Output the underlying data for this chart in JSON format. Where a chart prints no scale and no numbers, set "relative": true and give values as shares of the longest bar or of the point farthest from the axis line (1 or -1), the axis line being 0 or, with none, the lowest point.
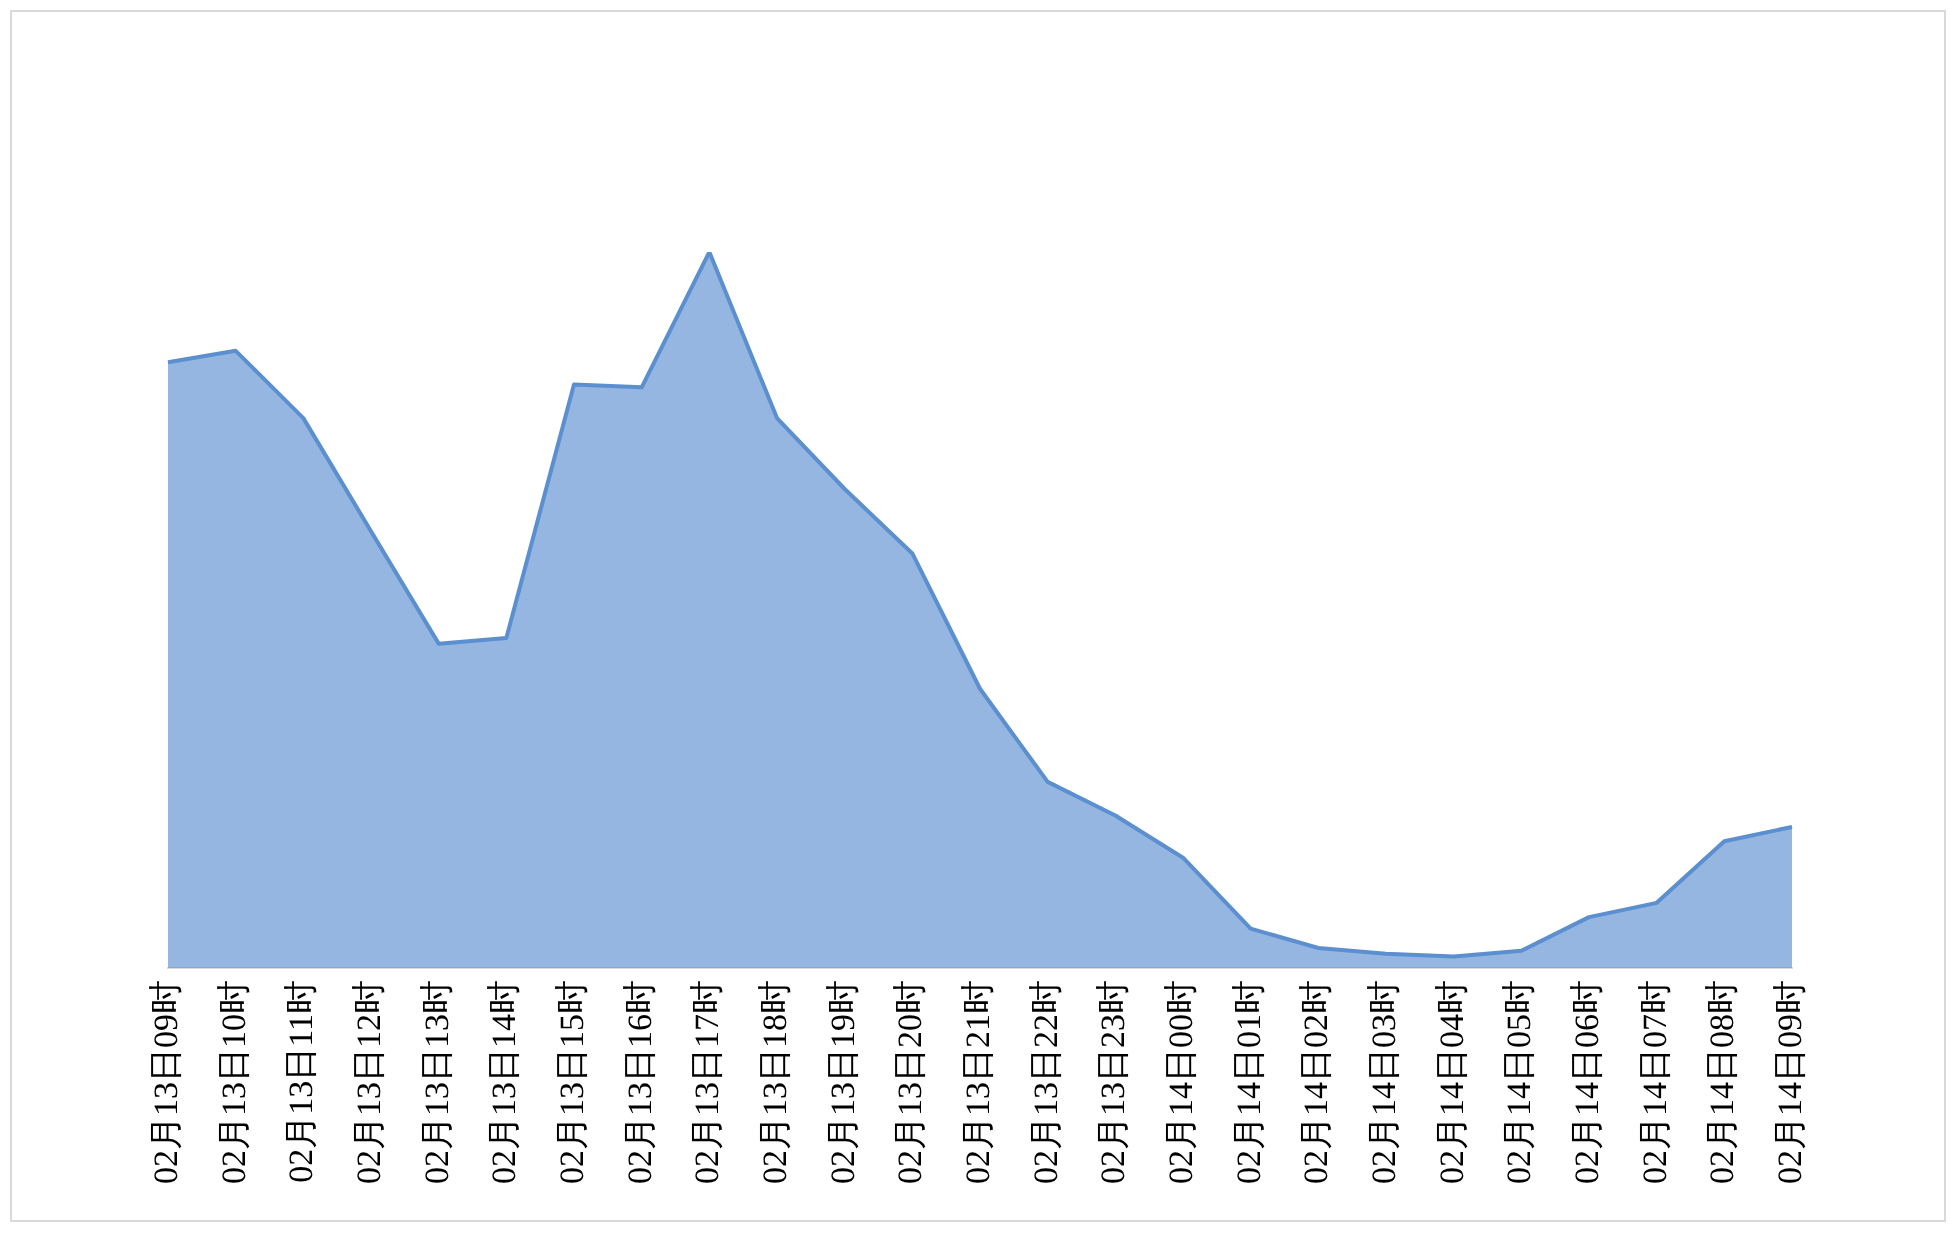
{
  "chart_data": {
    "type": "area",
    "relative": true,
    "grid": false,
    "legend": false,
    "categories": [
      "02月13日09时",
      "02月13日10时",
      "02月13日11时",
      "02月13日12时",
      "02月13日13时",
      "02月13日14时",
      "02月13日15时",
      "02月13日16时",
      "02月13日17时",
      "02月13日18时",
      "02月13日19时",
      "02月13日20时",
      "02月13日21时",
      "02月13日22时",
      "02月13日23时",
      "02月14日00时",
      "02月14日01时",
      "02月14日02时",
      "02月14日03时",
      "02月14日04时",
      "02月14日05时",
      "02月14日06时",
      "02月14日07时",
      "02月14日08时",
      "02月14日09时"
    ],
    "series": [
      {
        "color": "#5b8fd0",
        "values": [
          0.846,
          0.862,
          0.768,
          0.61,
          0.453,
          0.461,
          0.815,
          0.811,
          1,
          0.768,
          0.669,
          0.579,
          0.39,
          0.26,
          0.213,
          0.154,
          0.055,
          0.028,
          0.02,
          0.016,
          0.024,
          0.071,
          0.091,
          0.177,
          0.197
        ]
      }
    ]
  }
}
